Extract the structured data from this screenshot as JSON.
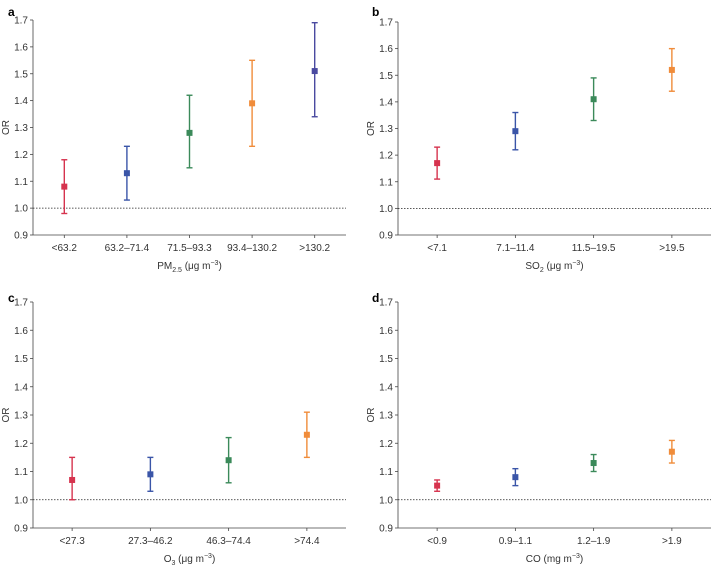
{
  "chart_data": [
    {
      "panel_label": "a",
      "type": "scatter",
      "x_unit_parts": [
        "PM",
        "2.5",
        " (μg m",
        "−3",
        ")"
      ],
      "ylabel": "OR",
      "ylim": [
        0.9,
        1.7
      ],
      "yticks": [
        "0.9",
        "1.0",
        "1.1",
        "1.2",
        "1.3",
        "1.4",
        "1.5",
        "1.6",
        "1.7"
      ],
      "reference_line": 1.0,
      "categories": [
        "<63.2",
        "63.2–71.4",
        "71.5–93.3",
        "93.4–130.2",
        ">130.2"
      ],
      "values": [
        1.08,
        1.13,
        1.28,
        1.39,
        1.51
      ],
      "lower": [
        0.98,
        1.03,
        1.15,
        1.23,
        1.34
      ],
      "upper": [
        1.18,
        1.23,
        1.42,
        1.55,
        1.69
      ],
      "colors": [
        "#d6334e",
        "#3a55a8",
        "#3b8a5a",
        "#f08c3a",
        "#4a4aa0"
      ]
    },
    {
      "panel_label": "b",
      "type": "scatter",
      "x_unit_parts": [
        "SO",
        "2",
        " (μg m",
        "−3",
        ")"
      ],
      "ylabel": "OR",
      "ylim": [
        0.9,
        1.7
      ],
      "yticks": [
        "0.9",
        "1.0",
        "1.1",
        "1.2",
        "1.3",
        "1.4",
        "1.5",
        "1.6",
        "1.7"
      ],
      "reference_line": 1.0,
      "categories": [
        "<7.1",
        "7.1–11.4",
        "11.5–19.5",
        ">19.5"
      ],
      "values": [
        1.17,
        1.29,
        1.41,
        1.52
      ],
      "lower": [
        1.11,
        1.22,
        1.33,
        1.44
      ],
      "upper": [
        1.23,
        1.36,
        1.49,
        1.6
      ],
      "colors": [
        "#d6334e",
        "#3a55a8",
        "#3b8a5a",
        "#f08c3a"
      ]
    },
    {
      "panel_label": "c",
      "type": "scatter",
      "x_unit_parts": [
        "O",
        "3",
        " (μg m",
        "−3",
        ")"
      ],
      "ylabel": "OR",
      "ylim": [
        0.9,
        1.7
      ],
      "yticks": [
        "0.9",
        "1.0",
        "1.1",
        "1.2",
        "1.3",
        "1.4",
        "1.5",
        "1.6",
        "1.7"
      ],
      "reference_line": 1.0,
      "categories": [
        "<27.3",
        "27.3–46.2",
        "46.3–74.4",
        ">74.4"
      ],
      "values": [
        1.07,
        1.09,
        1.14,
        1.23
      ],
      "lower": [
        1.0,
        1.03,
        1.06,
        1.15
      ],
      "upper": [
        1.15,
        1.15,
        1.22,
        1.31
      ],
      "colors": [
        "#d6334e",
        "#3a55a8",
        "#3b8a5a",
        "#f08c3a"
      ]
    },
    {
      "panel_label": "d",
      "type": "scatter",
      "x_unit_parts": [
        "CO (mg m",
        "−3",
        ")"
      ],
      "ylabel": "OR",
      "ylim": [
        0.9,
        1.7
      ],
      "yticks": [
        "0.9",
        "1.0",
        "1.1",
        "1.2",
        "1.3",
        "1.4",
        "1.5",
        "1.6",
        "1.7"
      ],
      "reference_line": 1.0,
      "categories": [
        "<0.9",
        "0.9–1.1",
        "1.2–1.9",
        ">1.9"
      ],
      "values": [
        1.05,
        1.08,
        1.13,
        1.17
      ],
      "lower": [
        1.03,
        1.05,
        1.1,
        1.13
      ],
      "upper": [
        1.07,
        1.11,
        1.16,
        1.21
      ],
      "colors": [
        "#d6334e",
        "#3a55a8",
        "#3b8a5a",
        "#f08c3a"
      ]
    }
  ]
}
